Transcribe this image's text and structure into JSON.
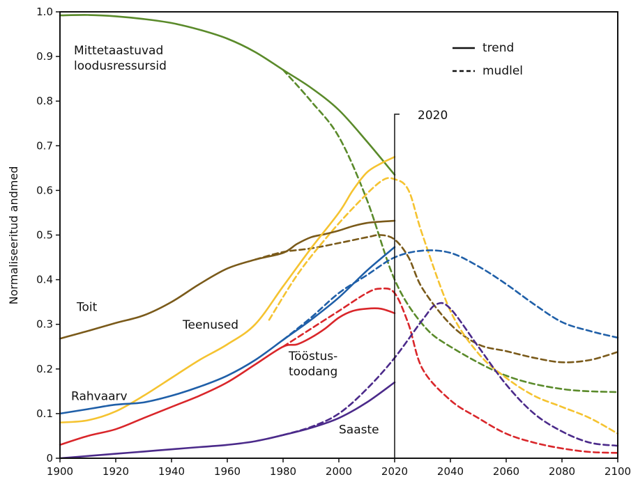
{
  "chart_data": {
    "type": "line",
    "title": "",
    "xlabel": "",
    "ylabel": "Normaliseeritud andmed",
    "xlim": [
      1900,
      2100
    ],
    "ylim": [
      0,
      1.0
    ],
    "x_ticks": [
      "1900",
      "1920",
      "1940",
      "1960",
      "1980",
      "2000",
      "2020",
      "2040",
      "2060",
      "2080",
      "2100"
    ],
    "y_ticks": [
      "0",
      "0.1",
      "0.2",
      "0.3",
      "0.4",
      "0.5",
      "0.6",
      "0.7",
      "0.8",
      "0.9",
      "1.0"
    ],
    "marker": {
      "x": 2020,
      "label": "2020"
    },
    "legend": {
      "placement": "top-right",
      "items": [
        {
          "label": "trend",
          "style": "solid"
        },
        {
          "label": "mudlel",
          "style": "dashed"
        }
      ]
    },
    "series": [
      {
        "name": "Mittetaastuvad loodusressursid",
        "label_lines": [
          "Mittetaastuvad",
          "loodusressursid"
        ],
        "label_pos": [
          1905,
          0.905
        ],
        "color": "#5a8a2a",
        "trend": [
          [
            1900,
            0.992
          ],
          [
            1910,
            0.993
          ],
          [
            1920,
            0.99
          ],
          [
            1930,
            0.984
          ],
          [
            1940,
            0.975
          ],
          [
            1950,
            0.96
          ],
          [
            1960,
            0.94
          ],
          [
            1970,
            0.91
          ],
          [
            1980,
            0.87
          ],
          [
            1990,
            0.83
          ],
          [
            2000,
            0.78
          ],
          [
            2010,
            0.71
          ],
          [
            2020,
            0.635
          ]
        ],
        "model": [
          [
            1980,
            0.87
          ],
          [
            1990,
            0.8
          ],
          [
            2000,
            0.72
          ],
          [
            2010,
            0.58
          ],
          [
            2020,
            0.4
          ],
          [
            2030,
            0.3
          ],
          [
            2040,
            0.25
          ],
          [
            2060,
            0.185
          ],
          [
            2080,
            0.155
          ],
          [
            2100,
            0.148
          ]
        ]
      },
      {
        "name": "Toit",
        "label_lines": [
          "Toit"
        ],
        "label_pos": [
          1906,
          0.33
        ],
        "color": "#7a5a1a",
        "trend": [
          [
            1900,
            0.268
          ],
          [
            1910,
            0.285
          ],
          [
            1920,
            0.303
          ],
          [
            1930,
            0.32
          ],
          [
            1940,
            0.35
          ],
          [
            1950,
            0.39
          ],
          [
            1960,
            0.425
          ],
          [
            1970,
            0.445
          ],
          [
            1980,
            0.46
          ],
          [
            1985,
            0.48
          ],
          [
            1990,
            0.495
          ],
          [
            1995,
            0.502
          ],
          [
            2000,
            0.51
          ],
          [
            2005,
            0.52
          ],
          [
            2010,
            0.527
          ],
          [
            2015,
            0.53
          ],
          [
            2020,
            0.532
          ]
        ],
        "model": [
          [
            1970,
            0.445
          ],
          [
            1980,
            0.462
          ],
          [
            1990,
            0.47
          ],
          [
            2000,
            0.482
          ],
          [
            2010,
            0.495
          ],
          [
            2015,
            0.5
          ],
          [
            2020,
            0.49
          ],
          [
            2025,
            0.45
          ],
          [
            2030,
            0.38
          ],
          [
            2040,
            0.3
          ],
          [
            2050,
            0.255
          ],
          [
            2060,
            0.24
          ],
          [
            2070,
            0.225
          ],
          [
            2080,
            0.215
          ],
          [
            2090,
            0.22
          ],
          [
            2100,
            0.238
          ]
        ]
      },
      {
        "name": "Teenused",
        "label_lines": [
          "Teenused"
        ],
        "label_pos": [
          1944,
          0.29
        ],
        "color": "#f5c330",
        "trend": [
          [
            1900,
            0.08
          ],
          [
            1910,
            0.085
          ],
          [
            1920,
            0.105
          ],
          [
            1930,
            0.14
          ],
          [
            1940,
            0.18
          ],
          [
            1950,
            0.22
          ],
          [
            1960,
            0.255
          ],
          [
            1970,
            0.3
          ],
          [
            1980,
            0.385
          ],
          [
            1990,
            0.47
          ],
          [
            2000,
            0.55
          ],
          [
            2005,
            0.6
          ],
          [
            2010,
            0.64
          ],
          [
            2015,
            0.66
          ],
          [
            2020,
            0.675
          ]
        ],
        "model": [
          [
            1975,
            0.31
          ],
          [
            1985,
            0.41
          ],
          [
            1995,
            0.49
          ],
          [
            2005,
            0.56
          ],
          [
            2015,
            0.62
          ],
          [
            2020,
            0.625
          ],
          [
            2025,
            0.6
          ],
          [
            2030,
            0.5
          ],
          [
            2040,
            0.33
          ],
          [
            2050,
            0.235
          ],
          [
            2060,
            0.18
          ],
          [
            2070,
            0.14
          ],
          [
            2080,
            0.115
          ],
          [
            2090,
            0.09
          ],
          [
            2100,
            0.055
          ]
        ]
      },
      {
        "name": "Tööstustoodang",
        "label_lines": [
          "Tööstus-",
          "toodang"
        ],
        "label_pos": [
          1982,
          0.22
        ],
        "color": "#d9262a",
        "trend": [
          [
            1900,
            0.03
          ],
          [
            1910,
            0.05
          ],
          [
            1920,
            0.065
          ],
          [
            1930,
            0.09
          ],
          [
            1940,
            0.115
          ],
          [
            1950,
            0.14
          ],
          [
            1960,
            0.17
          ],
          [
            1970,
            0.21
          ],
          [
            1980,
            0.25
          ],
          [
            1985,
            0.255
          ],
          [
            1990,
            0.27
          ],
          [
            1995,
            0.29
          ],
          [
            2000,
            0.315
          ],
          [
            2005,
            0.33
          ],
          [
            2010,
            0.335
          ],
          [
            2015,
            0.335
          ],
          [
            2020,
            0.325
          ]
        ],
        "model": [
          [
            1980,
            0.25
          ],
          [
            1990,
            0.29
          ],
          [
            2000,
            0.33
          ],
          [
            2010,
            0.37
          ],
          [
            2015,
            0.38
          ],
          [
            2020,
            0.37
          ],
          [
            2025,
            0.3
          ],
          [
            2030,
            0.2
          ],
          [
            2040,
            0.13
          ],
          [
            2050,
            0.09
          ],
          [
            2060,
            0.055
          ],
          [
            2070,
            0.035
          ],
          [
            2080,
            0.022
          ],
          [
            2090,
            0.014
          ],
          [
            2100,
            0.012
          ]
        ]
      },
      {
        "name": "Rahvaarv",
        "label_lines": [
          "Rahvaarv"
        ],
        "label_pos": [
          1904,
          0.13
        ],
        "color": "#1f5fa8",
        "trend": [
          [
            1900,
            0.1
          ],
          [
            1910,
            0.11
          ],
          [
            1920,
            0.12
          ],
          [
            1930,
            0.125
          ],
          [
            1940,
            0.14
          ],
          [
            1950,
            0.16
          ],
          [
            1960,
            0.185
          ],
          [
            1970,
            0.22
          ],
          [
            1980,
            0.265
          ],
          [
            1990,
            0.31
          ],
          [
            2000,
            0.36
          ],
          [
            2010,
            0.42
          ],
          [
            2020,
            0.473
          ]
        ],
        "model": [
          [
            1980,
            0.265
          ],
          [
            1990,
            0.315
          ],
          [
            2000,
            0.37
          ],
          [
            2010,
            0.41
          ],
          [
            2020,
            0.45
          ],
          [
            2030,
            0.465
          ],
          [
            2040,
            0.46
          ],
          [
            2050,
            0.43
          ],
          [
            2060,
            0.39
          ],
          [
            2070,
            0.345
          ],
          [
            2080,
            0.305
          ],
          [
            2090,
            0.285
          ],
          [
            2100,
            0.27
          ]
        ]
      },
      {
        "name": "Saaste",
        "label_lines": [
          "Saaste"
        ],
        "label_pos": [
          2000,
          0.055
        ],
        "color": "#4b2a8a",
        "trend": [
          [
            1900,
            0.0
          ],
          [
            1910,
            0.005
          ],
          [
            1920,
            0.01
          ],
          [
            1930,
            0.015
          ],
          [
            1940,
            0.02
          ],
          [
            1950,
            0.025
          ],
          [
            1960,
            0.03
          ],
          [
            1970,
            0.038
          ],
          [
            1980,
            0.052
          ],
          [
            1990,
            0.068
          ],
          [
            2000,
            0.09
          ],
          [
            2010,
            0.125
          ],
          [
            2020,
            0.17
          ]
        ],
        "model": [
          [
            1980,
            0.052
          ],
          [
            1990,
            0.07
          ],
          [
            2000,
            0.1
          ],
          [
            2010,
            0.155
          ],
          [
            2020,
            0.225
          ],
          [
            2030,
            0.31
          ],
          [
            2035,
            0.345
          ],
          [
            2040,
            0.335
          ],
          [
            2050,
            0.25
          ],
          [
            2060,
            0.165
          ],
          [
            2070,
            0.1
          ],
          [
            2080,
            0.06
          ],
          [
            2090,
            0.035
          ],
          [
            2100,
            0.028
          ]
        ]
      }
    ]
  }
}
